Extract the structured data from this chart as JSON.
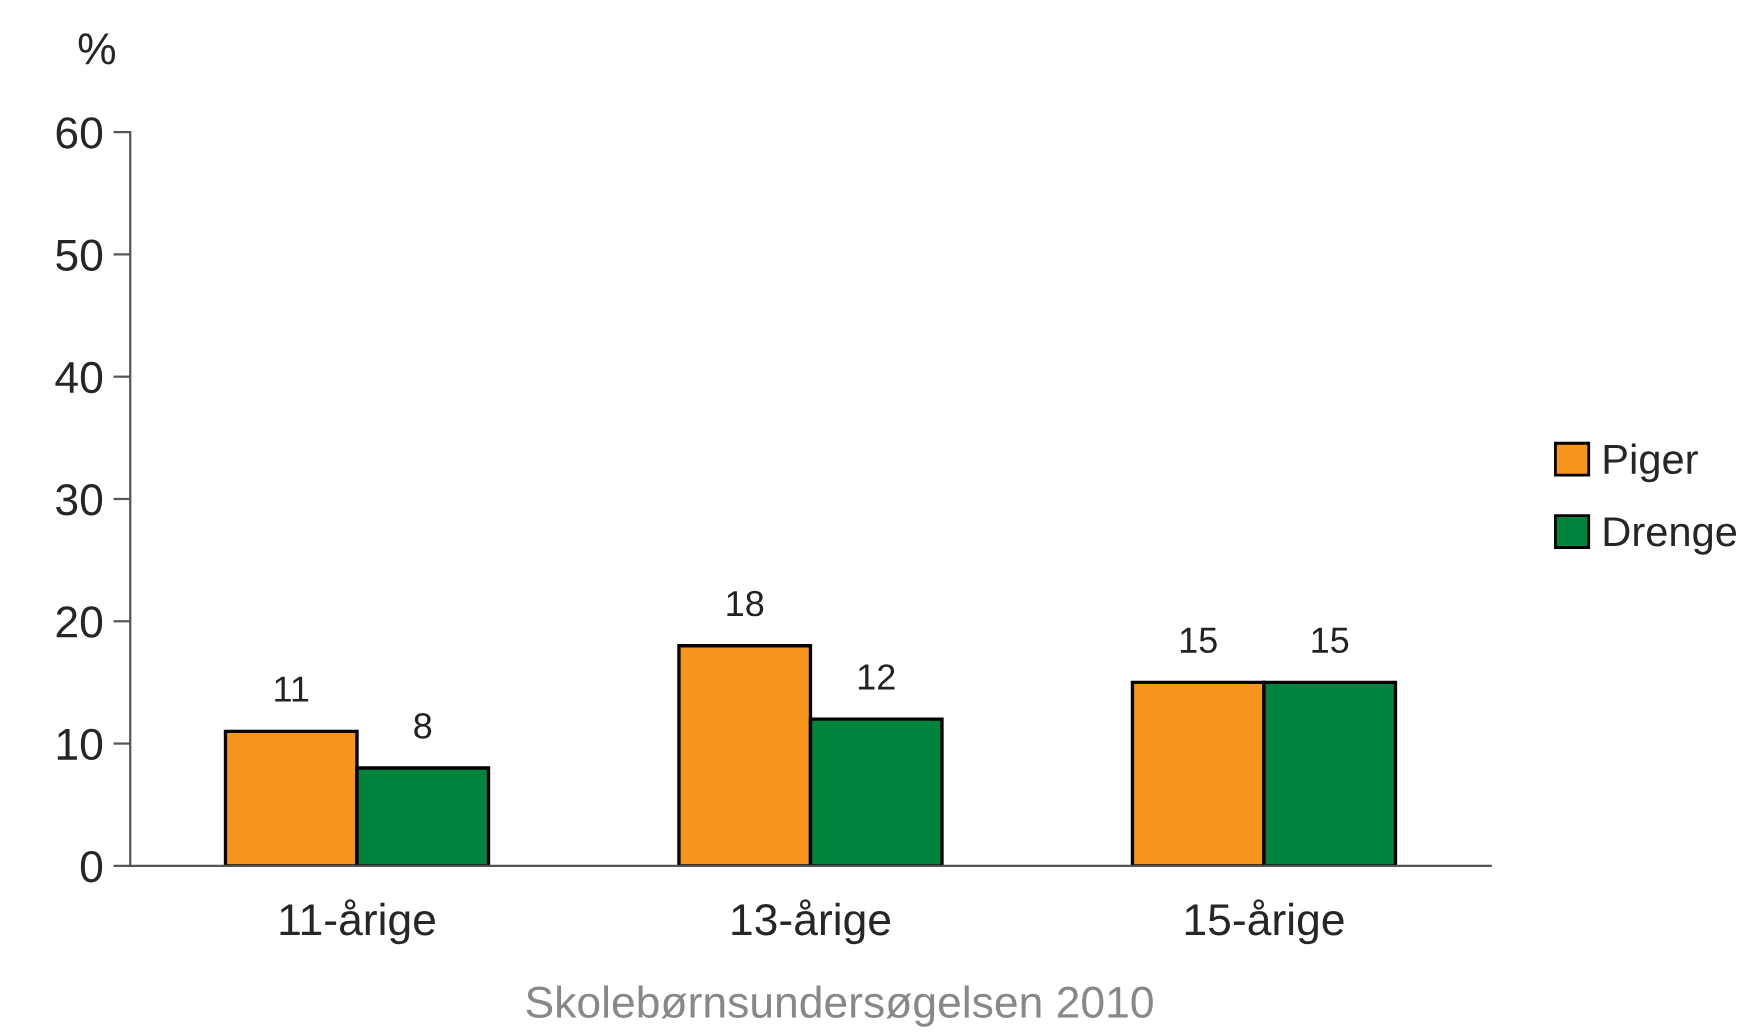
{
  "chart_data": {
    "type": "bar",
    "ylabel": "%",
    "categories": [
      "11-årige",
      "13-årige",
      "15-årige"
    ],
    "series": [
      {
        "name": "Piger",
        "color": "#f7941d",
        "values": [
          11,
          18,
          15
        ]
      },
      {
        "name": "Drenge",
        "color": "#00843d",
        "values": [
          8,
          12,
          15
        ]
      }
    ],
    "ylim": [
      0,
      60
    ],
    "yticks": [
      0,
      10,
      20,
      30,
      40,
      50,
      60
    ],
    "grid": false,
    "legend": "right",
    "data_labels": true,
    "annotations": [
      "Skolebørnsundersøgelsen 2010"
    ]
  }
}
